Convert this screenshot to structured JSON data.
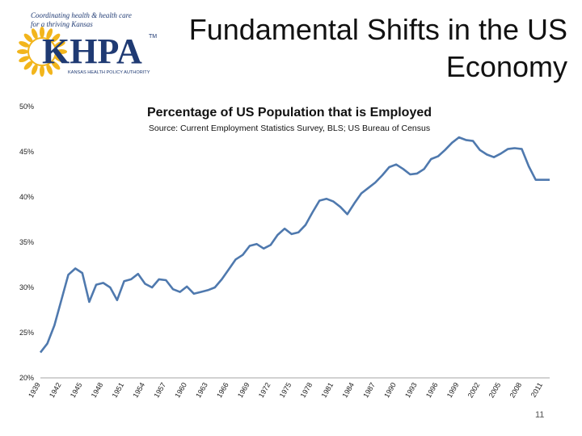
{
  "slide": {
    "title_line1": "Fundamental Shifts in the US",
    "title_line2": "Economy",
    "page_number": "11"
  },
  "logo": {
    "tagline_line1": "Coordinating health & health care",
    "tagline_line2": "for a thriving Kansas",
    "wordmark": "KHPA",
    "trademark": "TM",
    "org_name": "KANSAS HEALTH POLICY AUTHORITY",
    "colors": {
      "sun": "#F2B51C",
      "text": "#1F3A73"
    }
  },
  "chart_data": {
    "type": "line",
    "title": "Percentage of US Population that is Employed",
    "subtitle": "Source: Current Employment Statistics Survey, BLS; US Bureau of Census",
    "ylim": [
      20,
      50
    ],
    "yticks": [
      20,
      25,
      30,
      35,
      40,
      45,
      50
    ],
    "ytick_labels": [
      "20%",
      "25%",
      "30%",
      "35%",
      "40%",
      "45%",
      "50%"
    ],
    "xlim": [
      1939,
      2012
    ],
    "xtick_labels": [
      "1939",
      "1942",
      "1945",
      "1948",
      "1951",
      "1954",
      "1957",
      "1960",
      "1963",
      "1966",
      "1969",
      "1972",
      "1975",
      "1978",
      "1981",
      "1984",
      "1987",
      "1990",
      "1993",
      "1996",
      "1999",
      "2002",
      "2005",
      "2008",
      "2011"
    ],
    "line_color": "#4F79AE",
    "grid": false,
    "series": [
      {
        "x": [
          1939,
          1940,
          1941,
          1942,
          1943,
          1944,
          1945,
          1946,
          1947,
          1948,
          1949,
          1950,
          1951,
          1952,
          1953,
          1954,
          1955,
          1956,
          1957,
          1958,
          1959,
          1960,
          1961,
          1962,
          1963,
          1964,
          1965,
          1966,
          1967,
          1968,
          1969,
          1970,
          1971,
          1972,
          1973,
          1974,
          1975,
          1976,
          1977,
          1978,
          1979,
          1980,
          1981,
          1982,
          1983,
          1984,
          1985,
          1986,
          1987,
          1988,
          1989,
          1990,
          1991,
          1992,
          1993,
          1994,
          1995,
          1996,
          1997,
          1998,
          1999,
          2000,
          2001,
          2002,
          2003,
          2004,
          2005,
          2006,
          2007,
          2008,
          2009,
          2010,
          2011,
          2012
        ],
        "values": [
          22.8,
          23.8,
          25.8,
          28.6,
          31.4,
          32.1,
          31.6,
          28.4,
          30.3,
          30.5,
          30.0,
          28.6,
          30.7,
          30.9,
          31.5,
          30.4,
          30.0,
          30.9,
          30.8,
          29.8,
          29.5,
          30.1,
          29.3,
          29.5,
          29.7,
          30.0,
          30.9,
          32.0,
          33.1,
          33.6,
          34.6,
          34.8,
          34.3,
          34.7,
          35.8,
          36.5,
          35.9,
          36.1,
          36.9,
          38.3,
          39.6,
          39.8,
          39.5,
          38.9,
          38.1,
          39.3,
          40.4,
          41.0,
          41.6,
          42.4,
          43.3,
          43.6,
          43.1,
          42.5,
          42.6,
          43.1,
          44.2,
          44.5,
          45.2,
          46.0,
          46.6,
          46.3,
          46.2,
          45.2,
          44.7,
          44.4,
          44.8,
          45.3,
          45.4,
          45.3,
          43.4,
          41.9,
          41.9,
          41.9
        ]
      }
    ]
  }
}
